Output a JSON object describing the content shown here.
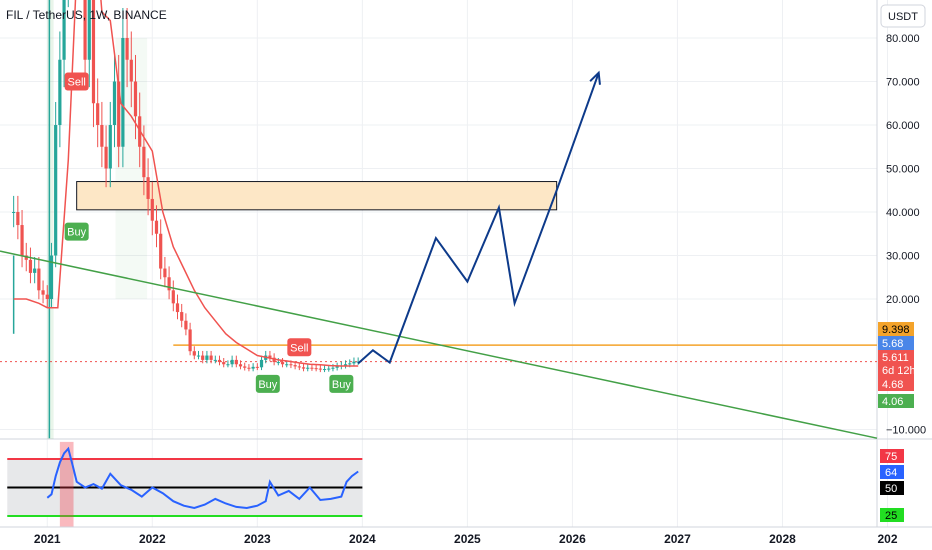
{
  "header": {
    "title": "FIL / TetherUS, 1W, BINANCE"
  },
  "price_axis": {
    "currency": "USDT",
    "ticks": [
      {
        "label": "80.000",
        "value": 80
      },
      {
        "label": "70.000",
        "value": 70
      },
      {
        "label": "60.000",
        "value": 60
      },
      {
        "label": "50.000",
        "value": 50
      },
      {
        "label": "40.000",
        "value": 40
      },
      {
        "label": "30.000",
        "value": 30
      },
      {
        "label": "20.000",
        "value": 20
      },
      {
        "label": "−10.000",
        "value": -10
      }
    ]
  },
  "price_badges": [
    {
      "label": "9.398",
      "color": "#f4a32a",
      "text_color": "#000000"
    },
    {
      "label": "5.68",
      "color": "#4a86e8",
      "text_color": "#ffffff"
    },
    {
      "label": "5.611",
      "color": "#f05350",
      "text_color": "#ffffff"
    },
    {
      "label": "6d 12h",
      "color": "#f05350",
      "text_color": "#ffffff"
    },
    {
      "label": "4.68",
      "color": "#f05350",
      "text_color": "#ffffff"
    },
    {
      "label": "4.06",
      "color": "#4caf50",
      "text_color": "#ffffff"
    }
  ],
  "osc_badges": [
    {
      "label": "75",
      "color": "#f23645",
      "text_color": "#ffffff"
    },
    {
      "label": "64",
      "color": "#2962ff",
      "text_color": "#ffffff"
    },
    {
      "label": "50",
      "color": "#000000",
      "text_color": "#ffffff"
    },
    {
      "label": "25",
      "color": "#22dd22",
      "text_color": "#000000"
    }
  ],
  "signals": [
    {
      "label": "Sell",
      "color": "#f05350"
    },
    {
      "label": "Buy",
      "color": "#4caf50"
    },
    {
      "label": "Sell",
      "color": "#f05350"
    },
    {
      "label": "Buy",
      "color": "#4caf50"
    },
    {
      "label": "Buy",
      "color": "#4caf50"
    }
  ],
  "time_axis": {
    "ticks": [
      "2021",
      "2022",
      "2023",
      "2024",
      "2025",
      "2026",
      "2027",
      "2028",
      "202"
    ]
  },
  "chart_data": {
    "type": "candlestick",
    "title": "FIL / TetherUS, 1W, BINANCE",
    "x_range": [
      2020.55,
      2028.9
    ],
    "series": [
      {
        "kind": "close",
        "x": [
          2020.68,
          2020.72,
          2020.76,
          2020.8,
          2020.84,
          2020.88,
          2020.92,
          2020.96,
          2021.0,
          2021.04,
          2021.08,
          2021.12,
          2021.16,
          2021.2,
          2021.24,
          2021.28,
          2021.32,
          2021.36,
          2021.4,
          2021.44,
          2021.48,
          2021.52,
          2021.56,
          2021.6,
          2021.64,
          2021.68,
          2021.72,
          2021.76,
          2021.8,
          2021.84,
          2021.88,
          2021.92,
          2021.96,
          2022.0,
          2022.04,
          2022.08,
          2022.12,
          2022.16,
          2022.2,
          2022.24,
          2022.28,
          2022.32,
          2022.36,
          2022.4,
          2022.44,
          2022.48,
          2022.52,
          2022.56,
          2022.6,
          2022.64,
          2022.68,
          2022.72,
          2022.76,
          2022.8,
          2022.84,
          2022.88,
          2022.92,
          2022.96,
          2023.0,
          2023.04,
          2023.08,
          2023.12,
          2023.16,
          2023.2,
          2023.24,
          2023.28,
          2023.32,
          2023.36,
          2023.4,
          2023.44,
          2023.48,
          2023.52,
          2023.56,
          2023.6,
          2023.64,
          2023.68,
          2023.72,
          2023.76,
          2023.8,
          2023.84,
          2023.88,
          2023.92,
          2023.96
        ],
        "y": [
          40,
          37,
          30,
          29,
          26,
          27,
          22,
          21,
          20,
          30,
          60,
          75,
          95,
          120,
          150,
          130,
          100,
          75,
          95,
          65,
          60,
          55,
          50,
          60,
          70,
          55,
          80,
          75,
          70,
          62,
          55,
          48,
          43,
          38,
          35,
          27,
          25,
          22,
          19,
          17,
          15,
          13,
          8,
          7,
          7,
          6,
          7,
          6,
          6,
          5.5,
          5,
          5,
          6,
          5,
          4.5,
          4.2,
          4,
          4.4,
          4.3,
          6,
          7,
          6.5,
          5.5,
          5.5,
          5,
          5,
          4.8,
          4.5,
          4.3,
          4,
          4.2,
          4.1,
          4,
          3.8,
          3.9,
          4,
          4.2,
          4.5,
          4.7,
          5,
          5.2,
          5.6,
          5.611
        ]
      },
      {
        "kind": "trailing-stop",
        "x": [
          2020.68,
          2020.8,
          2020.92,
          2021.0,
          2021.1,
          2021.2,
          2021.28,
          2021.36,
          2021.44,
          2021.52,
          2021.6,
          2021.7,
          2021.8,
          2021.9,
          2022.0,
          2022.1,
          2022.2,
          2022.3,
          2022.4,
          2022.5,
          2022.6,
          2022.7,
          2022.8,
          2022.9,
          2023.0,
          2023.1,
          2023.2,
          2023.3,
          2023.4,
          2023.5,
          2023.6,
          2023.7,
          2023.8,
          2023.9,
          2023.96
        ],
        "y": [
          20,
          20,
          19,
          18,
          18,
          52,
          95,
          160,
          110,
          86,
          84,
          65,
          62,
          58,
          54,
          40,
          32,
          27,
          22,
          18,
          15,
          12,
          10,
          8.5,
          7,
          6.5,
          6,
          5.7,
          5.3,
          5,
          4.9,
          4.7,
          4.6,
          4.6,
          4.6
        ]
      }
    ],
    "annotations": {
      "zone": {
        "x": [
          2021.28,
          2025.85
        ],
        "y": [
          40.5,
          47
        ]
      },
      "horizontal_line": {
        "y": 9.398,
        "from_x": 2022.2
      },
      "trend_line": {
        "points": [
          [
            2020.55,
            31
          ],
          [
            2028.9,
            -12
          ]
        ]
      },
      "projection_path": [
        [
          2023.96,
          5.2
        ],
        [
          2024.1,
          8.2
        ],
        [
          2024.26,
          5.4
        ],
        [
          2024.7,
          34
        ],
        [
          2025.0,
          24
        ],
        [
          2025.3,
          41
        ],
        [
          2025.45,
          19
        ],
        [
          2025.85,
          45
        ],
        [
          2026.25,
          72
        ]
      ]
    },
    "oscillator": {
      "levels": [
        75,
        50,
        25
      ],
      "x": [
        2021.0,
        2021.04,
        2021.08,
        2021.12,
        2021.16,
        2021.2,
        2021.24,
        2021.28,
        2021.36,
        2021.44,
        2021.52,
        2021.6,
        2021.7,
        2021.8,
        2021.9,
        2022.0,
        2022.1,
        2022.2,
        2022.3,
        2022.4,
        2022.5,
        2022.6,
        2022.7,
        2022.8,
        2022.9,
        2023.0,
        2023.08,
        2023.12,
        2023.2,
        2023.3,
        2023.4,
        2023.5,
        2023.6,
        2023.7,
        2023.8,
        2023.85,
        2023.9,
        2023.96
      ],
      "values": [
        41,
        44,
        60,
        72,
        80,
        84,
        70,
        55,
        50,
        53,
        49,
        62,
        52,
        48,
        42,
        50,
        45,
        38,
        34,
        32,
        35,
        40,
        36,
        33,
        32,
        34,
        38,
        55,
        43,
        47,
        40,
        50,
        39,
        40,
        42,
        55,
        60,
        64
      ]
    }
  }
}
